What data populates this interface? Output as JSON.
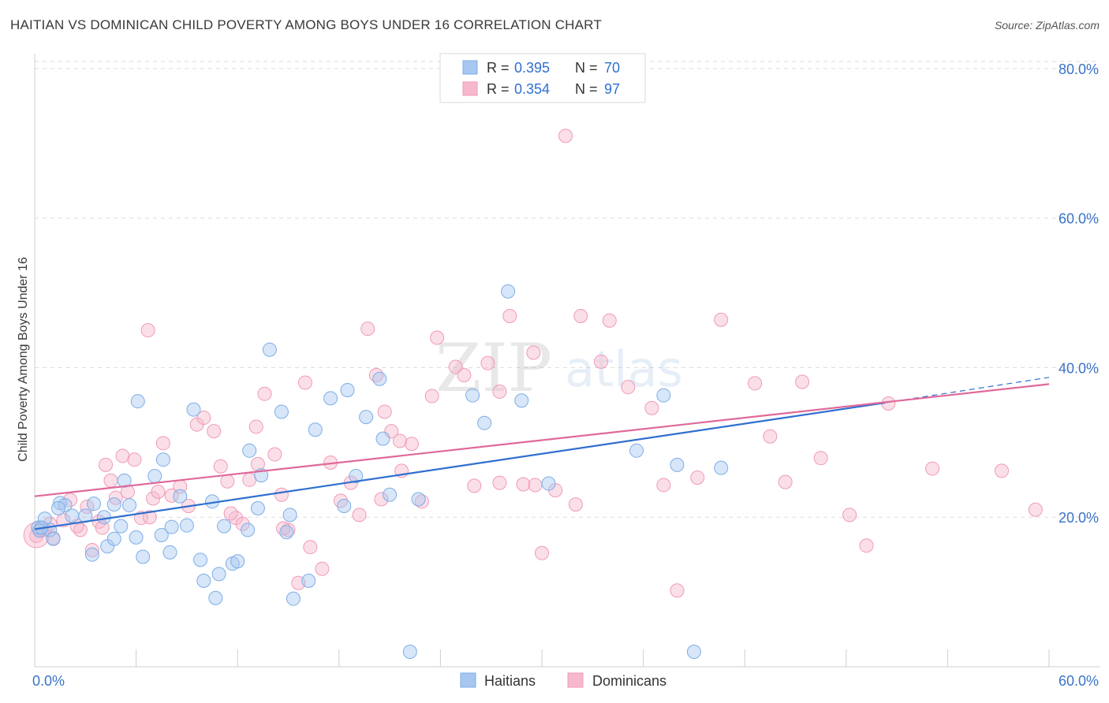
{
  "title": "HAITIAN VS DOMINICAN CHILD POVERTY AMONG BOYS UNDER 16 CORRELATION CHART",
  "source": "Source: ZipAtlas.com",
  "watermark": {
    "zip": "ZIP",
    "atlas": "atlas"
  },
  "legend": {
    "rows": [
      {
        "r_label": "R =",
        "r_value": "0.395",
        "n_label": "N =",
        "n_value": "70",
        "color": "#a7c7f0"
      },
      {
        "r_label": "R =",
        "r_value": "0.354",
        "n_label": "N =",
        "n_value": "97",
        "color": "#f6b8cc"
      }
    ]
  },
  "bottom_legend": [
    {
      "label": "Haitians",
      "color": "#a7c7f0"
    },
    {
      "label": "Dominicans",
      "color": "#f6b8cc"
    }
  ],
  "chart_data": {
    "type": "scatter",
    "title": "HAITIAN VS DOMINICAN CHILD POVERTY AMONG BOYS UNDER 16 CORRELATION CHART",
    "xlabel": "",
    "ylabel": "Child Poverty Among Boys Under 16",
    "xlim": [
      0,
      60
    ],
    "ylim": [
      0,
      82
    ],
    "x_ticks": [
      0,
      6,
      12,
      18,
      24,
      30,
      36,
      42,
      48,
      54,
      60
    ],
    "x_tick_labels": [
      {
        "value": 0,
        "label": "0.0%"
      },
      {
        "value": 60,
        "label": "60.0%"
      }
    ],
    "y_ticks": [
      {
        "value": 20,
        "label": "20.0%"
      },
      {
        "value": 40,
        "label": "40.0%"
      },
      {
        "value": 60,
        "label": "60.0%"
      },
      {
        "value": 80,
        "label": "80.0%"
      }
    ],
    "grid": true,
    "legend_position": "top-center",
    "series": [
      {
        "name": "Haitians",
        "color": "#7eaee8",
        "line_color": "#2f6fcf",
        "trend": {
          "x0": 0,
          "y0": 18.4,
          "x1": 50.3,
          "y1": 35.3,
          "dash_to_x": 60,
          "dash_to_y": 38.7
        },
        "points": [
          [
            0.2,
            18.6
          ],
          [
            0.3,
            18.2
          ],
          [
            0.6,
            19.8
          ],
          [
            0.9,
            18.3
          ],
          [
            1.1,
            17.1
          ],
          [
            1.5,
            21.9
          ],
          [
            1.8,
            21.6
          ],
          [
            2.2,
            20.2
          ],
          [
            3.0,
            20.2
          ],
          [
            3.5,
            21.8
          ],
          [
            4.1,
            20.0
          ],
          [
            4.3,
            16.1
          ],
          [
            4.7,
            17.1
          ],
          [
            5.1,
            18.8
          ],
          [
            5.3,
            24.9
          ],
          [
            5.6,
            21.6
          ],
          [
            6.0,
            17.3
          ],
          [
            6.4,
            14.7
          ],
          [
            7.1,
            25.5
          ],
          [
            7.5,
            17.6
          ],
          [
            7.6,
            27.7
          ],
          [
            8.0,
            15.3
          ],
          [
            8.6,
            22.8
          ],
          [
            9.0,
            18.9
          ],
          [
            9.8,
            14.3
          ],
          [
            10.0,
            11.5
          ],
          [
            10.7,
            9.2
          ],
          [
            10.9,
            12.4
          ],
          [
            11.2,
            18.8
          ],
          [
            11.7,
            13.8
          ],
          [
            12.0,
            14.1
          ],
          [
            12.6,
            18.3
          ],
          [
            13.2,
            21.2
          ],
          [
            13.4,
            25.6
          ],
          [
            14.6,
            34.1
          ],
          [
            15.1,
            20.3
          ],
          [
            15.3,
            9.1
          ],
          [
            16.2,
            11.5
          ],
          [
            16.6,
            31.7
          ],
          [
            17.5,
            35.9
          ],
          [
            18.3,
            21.5
          ],
          [
            18.5,
            37.0
          ],
          [
            19.0,
            25.5
          ],
          [
            19.6,
            33.4
          ],
          [
            20.4,
            38.5
          ],
          [
            20.6,
            30.5
          ],
          [
            21.0,
            23.0
          ],
          [
            22.2,
            2.0
          ],
          [
            25.9,
            36.3
          ],
          [
            26.6,
            32.6
          ],
          [
            28.0,
            50.2
          ],
          [
            28.8,
            35.6
          ],
          [
            30.4,
            24.5
          ],
          [
            35.6,
            28.9
          ],
          [
            37.2,
            36.3
          ],
          [
            38.0,
            27.0
          ],
          [
            39.0,
            2.0
          ],
          [
            40.6,
            26.6
          ],
          [
            6.1,
            35.5
          ],
          [
            9.4,
            34.4
          ],
          [
            13.9,
            42.4
          ],
          [
            22.7,
            22.4
          ],
          [
            3.4,
            15.0
          ],
          [
            4.7,
            21.7
          ],
          [
            8.1,
            18.7
          ],
          [
            10.5,
            22.1
          ],
          [
            12.7,
            28.9
          ],
          [
            14.9,
            18.0
          ],
          [
            1.4,
            21.2
          ],
          [
            0.4,
            18.6
          ]
        ]
      },
      {
        "name": "Dominicans",
        "color": "#f09ab7",
        "line_color": "#e0699a",
        "trend": {
          "x0": 0,
          "y0": 22.8,
          "x1": 60,
          "y1": 37.8
        },
        "points": [
          [
            0.1,
            17.5
          ],
          [
            0.3,
            18.3
          ],
          [
            0.6,
            18.3
          ],
          [
            0.9,
            19.1
          ],
          [
            1.1,
            17.2
          ],
          [
            1.7,
            19.6
          ],
          [
            2.1,
            22.3
          ],
          [
            2.7,
            18.3
          ],
          [
            3.1,
            21.4
          ],
          [
            3.4,
            15.6
          ],
          [
            3.8,
            19.4
          ],
          [
            4.2,
            27.0
          ],
          [
            4.5,
            24.9
          ],
          [
            4.8,
            22.6
          ],
          [
            5.2,
            28.2
          ],
          [
            5.5,
            23.4
          ],
          [
            5.9,
            27.7
          ],
          [
            6.3,
            19.9
          ],
          [
            6.7,
            45.0
          ],
          [
            7.0,
            22.5
          ],
          [
            7.3,
            23.4
          ],
          [
            7.6,
            29.9
          ],
          [
            8.1,
            22.9
          ],
          [
            8.6,
            24.1
          ],
          [
            9.1,
            21.5
          ],
          [
            9.6,
            32.4
          ],
          [
            10.0,
            33.3
          ],
          [
            10.6,
            31.5
          ],
          [
            11.0,
            26.8
          ],
          [
            11.4,
            24.8
          ],
          [
            11.9,
            19.9
          ],
          [
            12.3,
            19.1
          ],
          [
            12.7,
            25.0
          ],
          [
            13.1,
            32.1
          ],
          [
            13.6,
            36.5
          ],
          [
            14.2,
            28.4
          ],
          [
            14.6,
            23.0
          ],
          [
            15.0,
            18.3
          ],
          [
            15.6,
            11.2
          ],
          [
            16.3,
            16.0
          ],
          [
            17.0,
            13.1
          ],
          [
            17.5,
            27.3
          ],
          [
            18.1,
            22.2
          ],
          [
            18.7,
            24.6
          ],
          [
            19.2,
            20.3
          ],
          [
            19.7,
            45.2
          ],
          [
            20.2,
            39.0
          ],
          [
            20.7,
            34.1
          ],
          [
            21.1,
            31.5
          ],
          [
            21.7,
            26.2
          ],
          [
            22.3,
            29.8
          ],
          [
            22.9,
            22.1
          ],
          [
            23.5,
            36.2
          ],
          [
            23.8,
            44.0
          ],
          [
            24.9,
            40.1
          ],
          [
            25.4,
            39.0
          ],
          [
            26.0,
            24.2
          ],
          [
            26.8,
            40.6
          ],
          [
            27.5,
            36.8
          ],
          [
            28.1,
            46.9
          ],
          [
            28.9,
            24.4
          ],
          [
            29.5,
            42.0
          ],
          [
            30.0,
            15.2
          ],
          [
            30.8,
            23.6
          ],
          [
            31.4,
            71.0
          ],
          [
            32.0,
            21.7
          ],
          [
            32.3,
            46.9
          ],
          [
            33.5,
            40.8
          ],
          [
            34.0,
            46.3
          ],
          [
            35.1,
            37.4
          ],
          [
            36.5,
            34.6
          ],
          [
            37.2,
            24.3
          ],
          [
            38.0,
            10.2
          ],
          [
            39.2,
            25.3
          ],
          [
            40.6,
            46.4
          ],
          [
            42.6,
            37.9
          ],
          [
            43.5,
            30.8
          ],
          [
            44.4,
            24.7
          ],
          [
            45.4,
            38.1
          ],
          [
            46.5,
            27.9
          ],
          [
            48.2,
            20.3
          ],
          [
            49.2,
            16.2
          ],
          [
            50.5,
            35.2
          ],
          [
            53.1,
            26.5
          ],
          [
            57.2,
            26.2
          ],
          [
            59.2,
            21.0
          ],
          [
            2.5,
            18.8
          ],
          [
            4.0,
            18.6
          ],
          [
            6.8,
            20.0
          ],
          [
            11.6,
            20.5
          ],
          [
            13.2,
            27.1
          ],
          [
            16.0,
            38.0
          ],
          [
            21.6,
            30.2
          ],
          [
            27.5,
            24.6
          ],
          [
            29.6,
            24.3
          ],
          [
            14.7,
            18.5
          ],
          [
            20.5,
            22.4
          ]
        ]
      }
    ]
  }
}
